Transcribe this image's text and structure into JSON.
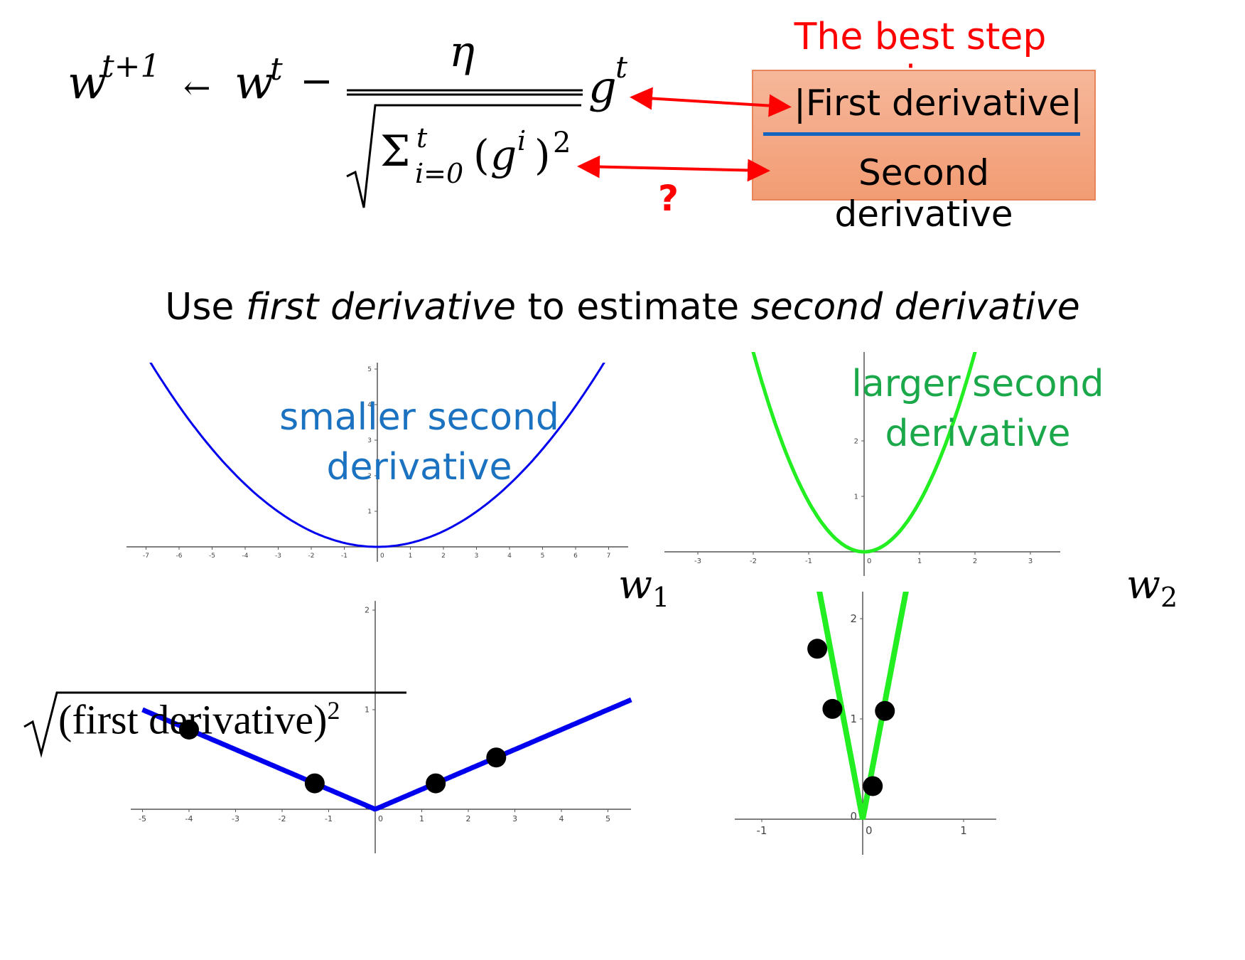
{
  "formula": {
    "w": "w",
    "t_plus_1": "t+1",
    "arrow": "←",
    "t": "t",
    "minus": "−",
    "eta": "η",
    "g": "g",
    "sum": "Σ",
    "i_eq_0": "i=0",
    "paren_open": "(",
    "i": "i",
    "paren_close": ")",
    "two": "2",
    "question": "?"
  },
  "best_step": {
    "title": "The best step is",
    "numerator": "|First derivative|",
    "denominator": "Second derivative",
    "title_color": "#ff0000",
    "box_color": "#f4a57f"
  },
  "subtitle": {
    "part1": "Use ",
    "part2": "first derivative",
    "part3": " to estimate ",
    "part4": "second derivative"
  },
  "labels": {
    "smaller_1": "smaller second",
    "smaller_2": "derivative",
    "larger_1": "larger second",
    "larger_2": "derivative",
    "w1_base": "w",
    "w1_sub": "1",
    "w2_base": "w",
    "w2_sub": "2",
    "sqrt_content": "(first derivative)",
    "sqrt_exp": "2"
  },
  "colors": {
    "blue_curve": "#0000ee",
    "green_curve": "#22ee22",
    "blue_label": "#1a72c0",
    "green_label": "#1aa84a",
    "arrow": "#ff0000"
  },
  "chart_data": [
    {
      "type": "line",
      "x_tick_labels": [
        "-7",
        "-6",
        "-5",
        "-4",
        "-3",
        "-2",
        "-1",
        "0",
        "1",
        "2",
        "3",
        "4",
        "5",
        "6",
        "7"
      ],
      "y_tick_labels": [
        "1",
        "2",
        "3",
        "4",
        "5"
      ],
      "xlim": [
        -7.5,
        7.5
      ],
      "series": [
        {
          "function": "y = 0.11 x^2",
          "color": "#0000ee"
        }
      ]
    },
    {
      "type": "line",
      "x_tick_labels": [
        "-3",
        "-2",
        "-1",
        "0",
        "1",
        "2",
        "3"
      ],
      "y_tick_labels": [
        "1",
        "2"
      ],
      "xlim": [
        -3,
        3.5
      ],
      "series": [
        {
          "function": "y = 0.9 x^2",
          "color": "#22ee22"
        }
      ]
    },
    {
      "type": "line",
      "x_tick_labels": [
        "-5",
        "-4",
        "-3",
        "-2",
        "-1",
        "0",
        "1",
        "2",
        "3",
        "4",
        "5"
      ],
      "y_tick_labels": [
        "0",
        "1",
        "2"
      ],
      "xlim": [
        -5,
        5.5
      ],
      "series": [
        {
          "function": "y = 0.2 |x|",
          "color": "#0000ee"
        }
      ],
      "points": [
        {
          "x": -4,
          "y": 0.8
        },
        {
          "x": -1.3,
          "y": 0.26
        },
        {
          "x": 1.3,
          "y": 0.26
        },
        {
          "x": 2.6,
          "y": 0.52
        }
      ]
    },
    {
      "type": "line",
      "x_tick_labels": [
        "-1",
        "0",
        "1"
      ],
      "y_tick_labels": [
        "0",
        "1",
        "2"
      ],
      "xlim": [
        -1.3,
        1.3
      ],
      "series": [
        {
          "function": "y = 5.3 |x|",
          "color": "#22ee22"
        }
      ],
      "points": [
        {
          "x": -0.45,
          "y": 1.7
        },
        {
          "x": -0.3,
          "y": 1.1
        },
        {
          "x": 0.1,
          "y": 0.33
        },
        {
          "x": 0.22,
          "y": 1.08
        }
      ]
    }
  ]
}
